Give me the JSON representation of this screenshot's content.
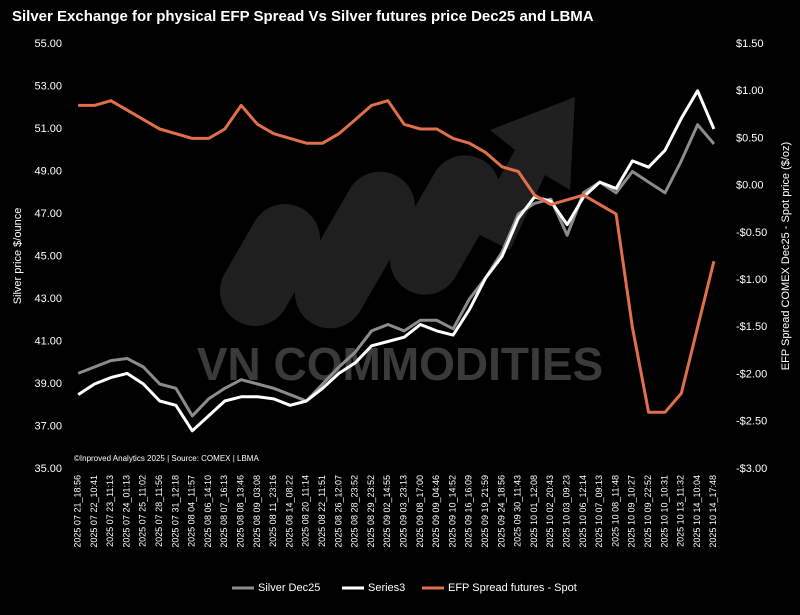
{
  "chart_data": {
    "type": "line",
    "title": "Silver Exchange for physical EFP Spread Vs Silver futures price Dec25 and LBMA",
    "y_label": "Silver  price $/ounce",
    "y2_label": "EFP Spread  COMEX Dec25 - Spot price ($/oz)",
    "source": "©Inproved Analytics 2025 | Source: COMEX | LBMA",
    "watermark": "VN COMMODITIES",
    "categories": [
      "2025 07 21_18:56",
      "2025 07 22_10:41",
      "2025 07 23_11:13",
      "2025 07 24_01:13",
      "2025 07 25_11:02",
      "2025 07 28_11:56",
      "2025 07 31_12:18",
      "2025 08 04_11:57",
      "2025 08 06_14:10",
      "2025 08 07_16:13",
      "2025 08 08_13:46",
      "2025 08 09_03:08",
      "2025 08 11_23:16",
      "2025 08 14_08:22",
      "2025 08 20_11:14",
      "2025 08 22_11:51",
      "2025 08 26_12:07",
      "2025 08 28_23:52",
      "2025 08 29_23:52",
      "2025 09 02_14:55",
      "2025 09 03_23:13",
      "2025 09 08_17:00",
      "2025 09 09_04:46",
      "2025 09 10_14:52",
      "2025 09 16_16:09",
      "2025 09 19_21:59",
      "2025 09 24_18:56",
      "2025 09 30_11:43",
      "2025 10 01_12:08",
      "2025 10 02_20:43",
      "2025 10 03_09:23",
      "2025 10 06_12:14",
      "2025 10 07_09:13",
      "2025 10 08_11:48",
      "2025 10 09_10:27",
      "2025 10 09_22:52",
      "2025 10 10_10:31",
      "2025 10 13_11:32",
      "2025 10 14_10:04",
      "2025 10 14_17:48"
    ],
    "series": [
      {
        "name": "Silver Dec25",
        "color": "#8c8c8c",
        "values": [
          39.5,
          39.8,
          40.1,
          40.2,
          39.8,
          39.0,
          38.8,
          37.5,
          38.3,
          38.8,
          39.2,
          39.0,
          38.8,
          38.5,
          38.2,
          39.0,
          39.8,
          40.5,
          41.5,
          41.8,
          41.5,
          42.0,
          42.0,
          41.6,
          43.0,
          44.0,
          45.2,
          47.0,
          47.5,
          47.7,
          46.0,
          48.0,
          48.5,
          48.0,
          49.0,
          48.5,
          48.0,
          49.5,
          51.2,
          50.3
        ]
      },
      {
        "name": "Series3",
        "color": "#ffffff",
        "values": [
          38.5,
          39.0,
          39.3,
          39.5,
          39.0,
          38.2,
          38.0,
          36.8,
          37.5,
          38.2,
          38.4,
          38.4,
          38.3,
          38.0,
          38.2,
          38.8,
          39.5,
          40.0,
          40.8,
          41.0,
          41.2,
          41.8,
          41.5,
          41.3,
          42.5,
          44.0,
          45.0,
          46.8,
          47.8,
          47.6,
          46.5,
          47.8,
          48.5,
          48.2,
          49.5,
          49.2,
          50.0,
          51.5,
          52.8,
          51.0
        ]
      },
      {
        "name": "EFP Spread futures - Spot",
        "color": "#e0704a",
        "axis": "y2",
        "values": [
          0.85,
          0.85,
          0.9,
          0.8,
          0.7,
          0.6,
          0.55,
          0.5,
          0.5,
          0.6,
          0.85,
          0.65,
          0.55,
          0.5,
          0.45,
          0.45,
          0.55,
          0.7,
          0.85,
          0.9,
          0.65,
          0.6,
          0.6,
          0.5,
          0.45,
          0.35,
          0.2,
          0.15,
          -0.1,
          -0.2,
          -0.15,
          -0.1,
          -0.2,
          -0.3,
          -1.5,
          -2.4,
          -2.4,
          -2.2,
          -1.5,
          -0.8
        ]
      }
    ],
    "ylim": [
      35,
      55
    ],
    "yticks": [
      {
        "value": 35,
        "label": "35.00"
      },
      {
        "value": 37,
        "label": "37.00"
      },
      {
        "value": 39,
        "label": "39.00"
      },
      {
        "value": 41,
        "label": "41.00"
      },
      {
        "value": 43,
        "label": "43.00"
      },
      {
        "value": 45,
        "label": "45.00"
      },
      {
        "value": 47,
        "label": "47.00"
      },
      {
        "value": 49,
        "label": "49.00"
      },
      {
        "value": 51,
        "label": "51.00"
      },
      {
        "value": 53,
        "label": "53.00"
      },
      {
        "value": 55,
        "label": "55.00"
      }
    ],
    "y2lim": [
      -3,
      1.5
    ],
    "y2ticks": [
      {
        "value": -3,
        "label": "-$3.00"
      },
      {
        "value": -2.5,
        "label": "-$2.50"
      },
      {
        "value": -2,
        "label": "-$2.00"
      },
      {
        "value": -1.5,
        "label": "-$1.50"
      },
      {
        "value": -1,
        "label": "-$1.00"
      },
      {
        "value": -0.5,
        "label": "-$0.50"
      },
      {
        "value": 0,
        "label": "$0.00"
      },
      {
        "value": 0.5,
        "label": "$0.50"
      },
      {
        "value": 1,
        "label": "$1.00"
      },
      {
        "value": 1.5,
        "label": "$1.50"
      }
    ]
  }
}
